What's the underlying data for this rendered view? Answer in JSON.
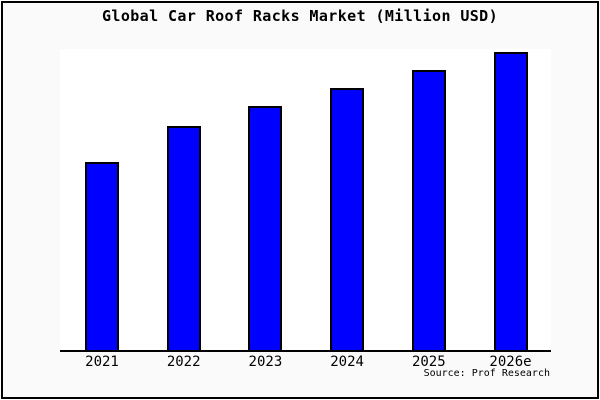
{
  "chart_data": {
    "type": "bar",
    "title": "Global Car Roof Racks Market (Million USD)",
    "categories": [
      "2021",
      "2022",
      "2023",
      "2024",
      "2025",
      "2026e"
    ],
    "values": [
      63,
      75,
      82,
      88,
      94,
      100
    ],
    "values_are_estimated_relative_units": true,
    "ylim": [
      0,
      101
    ],
    "xlabel": "",
    "ylabel": "",
    "grid": false,
    "legend": false,
    "value_axis_visible": false,
    "bar_color": "#0000ff",
    "bar_border_color": "#000000",
    "background_color": "#fafafa",
    "plot_background_color": "#ffffff",
    "frame_color": "#000000",
    "annotation": "Source: Prof Research",
    "annotation_position": "bottom-right"
  }
}
